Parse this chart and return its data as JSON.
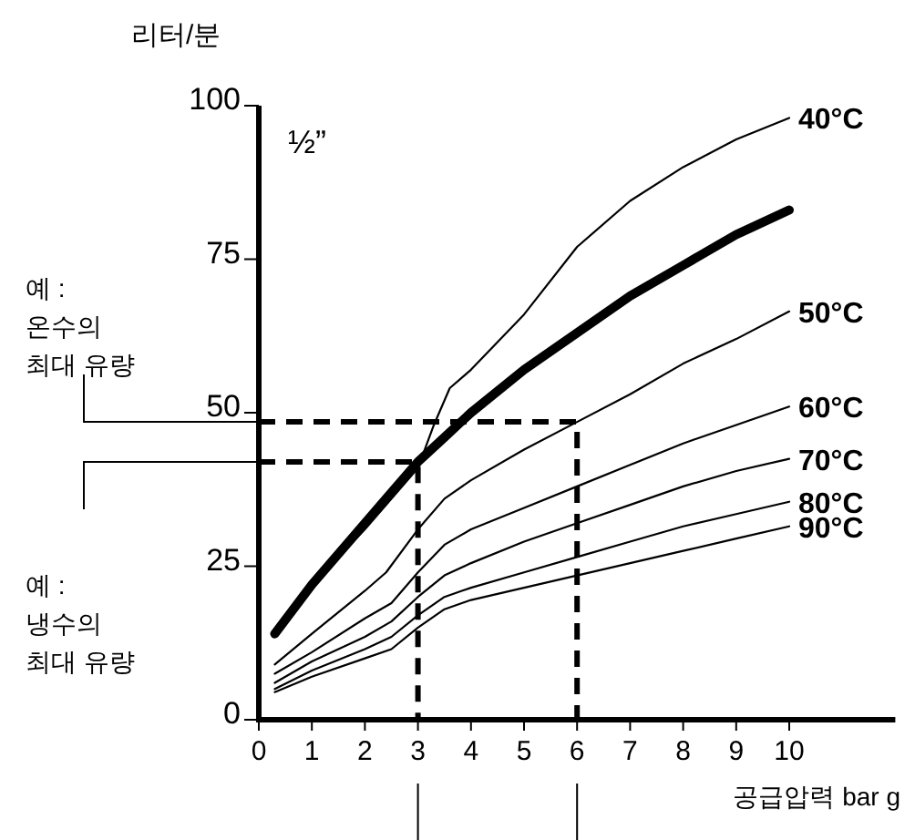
{
  "chart_data": {
    "type": "line",
    "xlabel": "공급압력 bar g",
    "ylabel": "리터/분",
    "annotations": [
      "½”",
      "예 :\n온수의\n최대 유량",
      "예 :\n냉수의\n최대 유량"
    ],
    "x": [
      0.3,
      1,
      2,
      2.5,
      3,
      3.5,
      4,
      5,
      6,
      7,
      8,
      9,
      10
    ],
    "xlim": [
      0,
      12
    ],
    "ylim": [
      0,
      100
    ],
    "xticks": [
      0,
      1,
      2,
      3,
      4,
      5,
      6,
      7,
      8,
      9,
      10
    ],
    "yticks": [
      0,
      25,
      50,
      75,
      100
    ],
    "series": [
      {
        "name": "40°C",
        "color": "#000000",
        "x": [
          0.3,
          1,
          2,
          3,
          3.3,
          3.6,
          4,
          5,
          6,
          7,
          8,
          9,
          10
        ],
        "values": [
          14,
          22,
          31,
          41,
          48,
          54,
          57,
          66,
          77,
          84.5,
          90,
          94.5,
          98
        ]
      },
      {
        "name": "50°C",
        "color": "#000000",
        "x": [
          0.3,
          1,
          2,
          2.4,
          3,
          3.5,
          4,
          5,
          6,
          7,
          8,
          9,
          10
        ],
        "values": [
          9,
          14,
          21,
          24,
          31,
          36,
          39,
          44,
          48.5,
          53,
          58,
          62,
          66.5
        ]
      },
      {
        "name": "60°C",
        "color": "#000000",
        "values": [
          7.5,
          11,
          16.5,
          19,
          24,
          28.5,
          31,
          34.5,
          38,
          41.5,
          45,
          48,
          51
        ]
      },
      {
        "name": "70°C",
        "color": "#000000",
        "values": [
          6,
          9.5,
          13.5,
          16,
          20,
          23.5,
          25.5,
          29,
          32,
          35,
          38,
          40.5,
          42.5
        ]
      },
      {
        "name": "80°C",
        "color": "#000000",
        "values": [
          5,
          8,
          11.5,
          13.5,
          17,
          20,
          21.5,
          24,
          26.5,
          29,
          31.5,
          33.5,
          35.5
        ]
      },
      {
        "name": "90°C",
        "color": "#000000",
        "values": [
          4.5,
          7,
          10,
          11.5,
          15,
          18,
          19.5,
          21.5,
          23.5,
          25.5,
          27.5,
          29.5,
          31.5
        ]
      },
      {
        "color": "#000000",
        "values": [
          14,
          22,
          32,
          37,
          42,
          46,
          50,
          57,
          63,
          69,
          74,
          79,
          83
        ]
      },
      {
        "color": "#000000",
        "line_style": "dashed",
        "x": [
          0,
          3,
          3
        ],
        "values": [
          42,
          42,
          0
        ]
      },
      {
        "color": "#000000",
        "line_style": "dashed",
        "x": [
          0,
          6,
          6
        ],
        "values": [
          48.5,
          48.5,
          0
        ]
      }
    ]
  }
}
